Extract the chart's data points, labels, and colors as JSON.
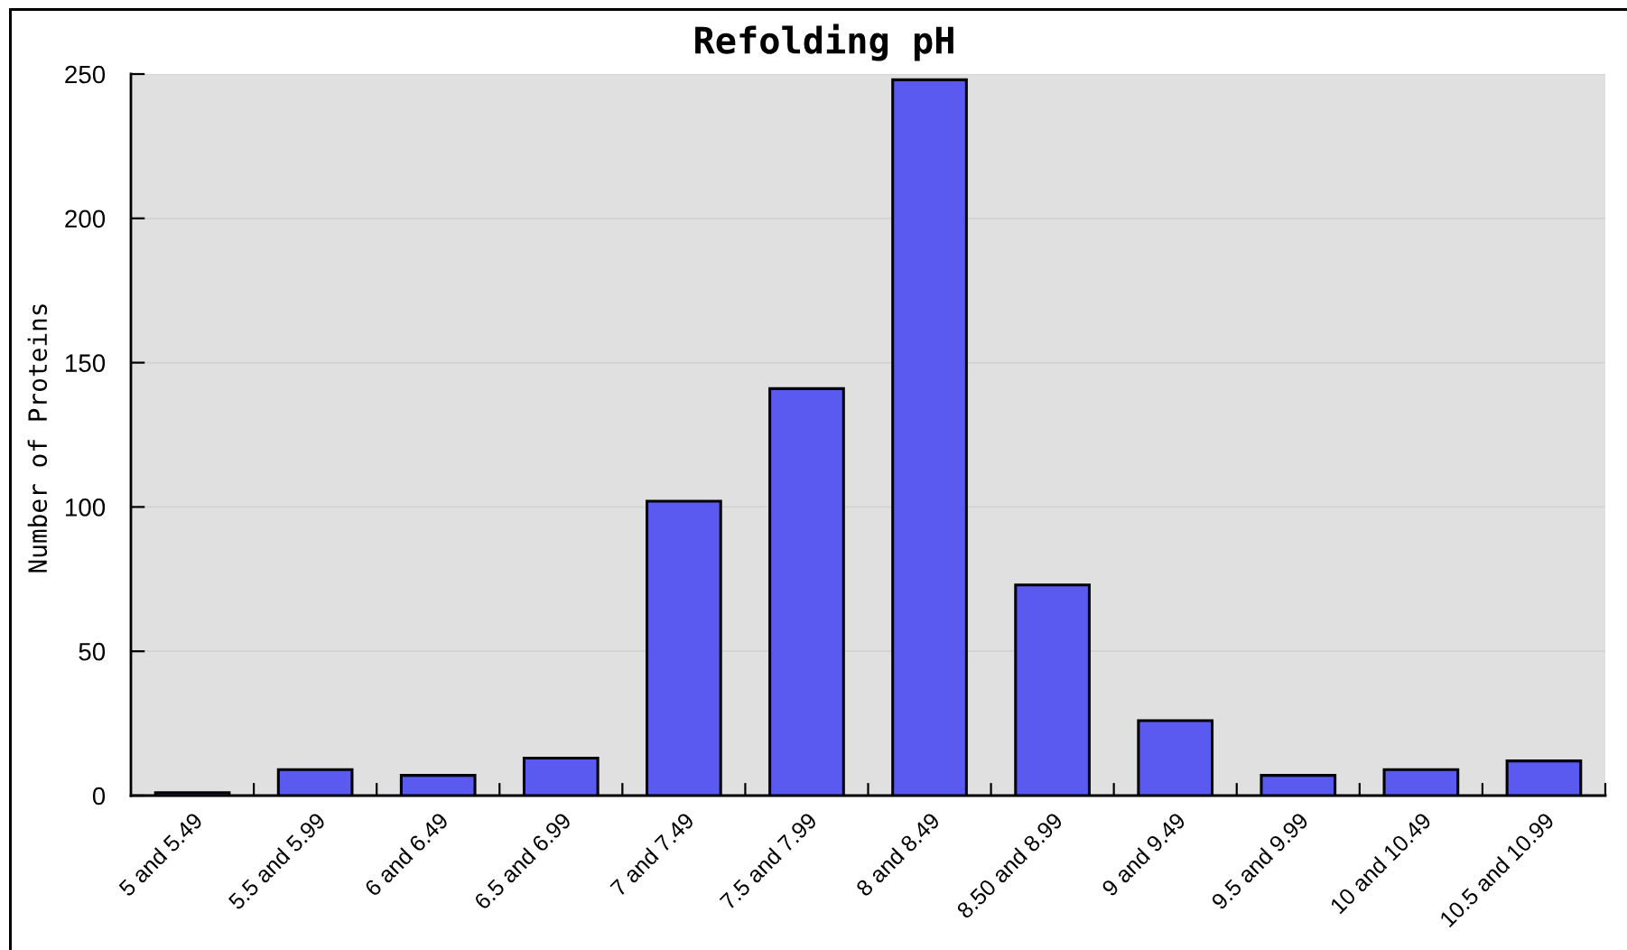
{
  "chart_data": {
    "type": "bar",
    "title": "Refolding pH",
    "ylabel": "Number of Proteins",
    "categories": [
      "5 and 5.49",
      "5.5 and 5.99",
      "6 and 6.49",
      "6.5 and 6.99",
      "7 and 7.49",
      "7.5 and 7.99",
      "8 and 8.49",
      "8.50 and 8.99",
      "9 and 9.49",
      "9.5 and 9.99",
      "10 and 10.49",
      "10.5 and 10.99"
    ],
    "values": [
      1,
      9,
      7,
      13,
      102,
      141,
      248,
      73,
      26,
      7,
      9,
      12
    ],
    "color": "#5a5af0",
    "ylim": [
      0,
      250
    ],
    "yticks": [
      0,
      50,
      100,
      150,
      200,
      250
    ],
    "grid": "y"
  }
}
